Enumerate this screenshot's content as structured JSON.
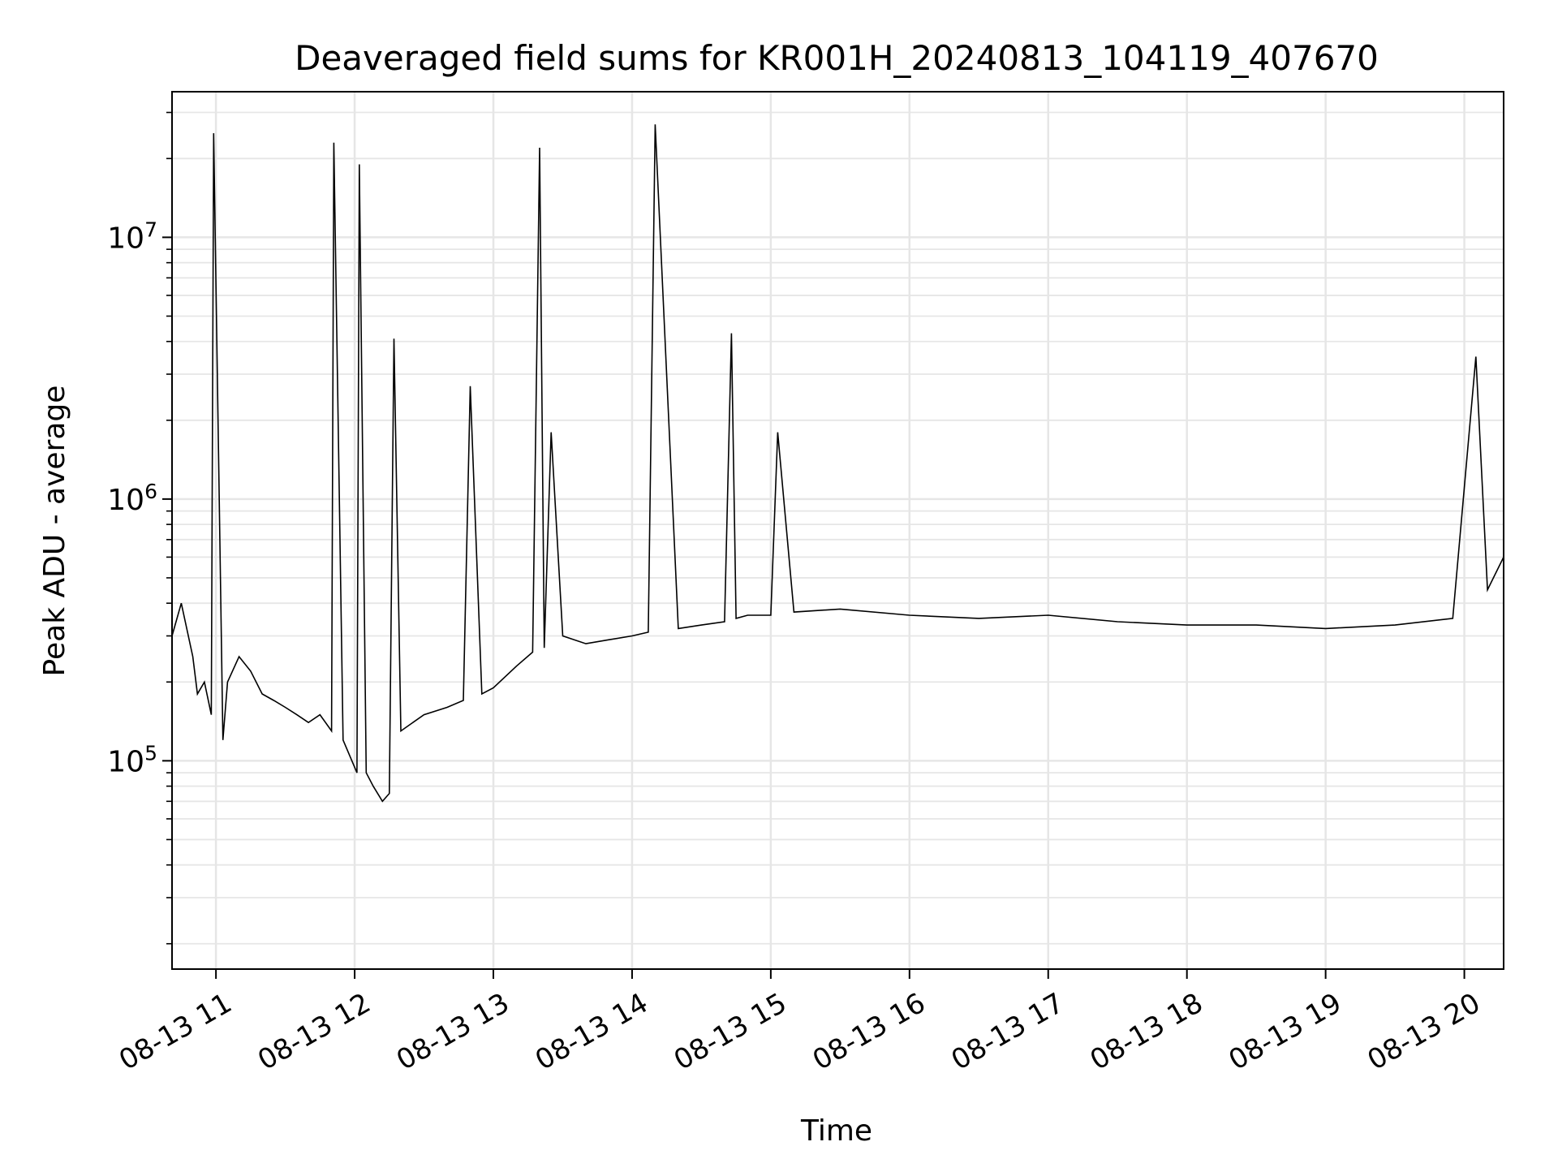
{
  "chart_data": {
    "type": "line",
    "title": "Deaveraged field sums for KR001H_20240813_104119_407670",
    "xlabel": "Time",
    "ylabel": "Peak ADU - average",
    "yscale": "log",
    "grid": true,
    "line_color": "#000000",
    "grid_color": "#e6e6e6",
    "xlim": [
      "2024-08-13T10:41",
      "2024-08-13T20:17"
    ],
    "ylim": [
      16000,
      36000000
    ],
    "x_ticks": [
      {
        "value": "2024-08-13T11:00",
        "label": "08-13 11"
      },
      {
        "value": "2024-08-13T12:00",
        "label": "08-13 12"
      },
      {
        "value": "2024-08-13T13:00",
        "label": "08-13 13"
      },
      {
        "value": "2024-08-13T14:00",
        "label": "08-13 14"
      },
      {
        "value": "2024-08-13T15:00",
        "label": "08-13 15"
      },
      {
        "value": "2024-08-13T16:00",
        "label": "08-13 16"
      },
      {
        "value": "2024-08-13T17:00",
        "label": "08-13 17"
      },
      {
        "value": "2024-08-13T18:00",
        "label": "08-13 18"
      },
      {
        "value": "2024-08-13T19:00",
        "label": "08-13 19"
      },
      {
        "value": "2024-08-13T20:00",
        "label": "08-13 20"
      }
    ],
    "y_ticks": [
      {
        "value": 100000,
        "base": "10",
        "exp": "5"
      },
      {
        "value": 1000000,
        "base": "10",
        "exp": "6"
      },
      {
        "value": 10000000,
        "base": "10",
        "exp": "7"
      }
    ],
    "series": [
      {
        "x": [
          "2024-08-13T10:41",
          "2024-08-13T10:45",
          "2024-08-13T10:50",
          "2024-08-13T10:52",
          "2024-08-13T10:55",
          "2024-08-13T10:58",
          "2024-08-13T10:59",
          "2024-08-13T11:03",
          "2024-08-13T11:05",
          "2024-08-13T11:10",
          "2024-08-13T11:15",
          "2024-08-13T11:20",
          "2024-08-13T11:25",
          "2024-08-13T11:30",
          "2024-08-13T11:35",
          "2024-08-13T11:40",
          "2024-08-13T11:45",
          "2024-08-13T11:50",
          "2024-08-13T11:51",
          "2024-08-13T11:55",
          "2024-08-13T12:01",
          "2024-08-13T12:02",
          "2024-08-13T12:05",
          "2024-08-13T12:08",
          "2024-08-13T12:12",
          "2024-08-13T12:15",
          "2024-08-13T12:17",
          "2024-08-13T12:20",
          "2024-08-13T12:30",
          "2024-08-13T12:40",
          "2024-08-13T12:47",
          "2024-08-13T12:50",
          "2024-08-13T12:55",
          "2024-08-13T13:00",
          "2024-08-13T13:10",
          "2024-08-13T13:17",
          "2024-08-13T13:20",
          "2024-08-13T13:22",
          "2024-08-13T13:25",
          "2024-08-13T13:30",
          "2024-08-13T13:40",
          "2024-08-13T13:50",
          "2024-08-13T14:00",
          "2024-08-13T14:07",
          "2024-08-13T14:10",
          "2024-08-13T14:20",
          "2024-08-13T14:30",
          "2024-08-13T14:40",
          "2024-08-13T14:43",
          "2024-08-13T14:45",
          "2024-08-13T14:50",
          "2024-08-13T15:00",
          "2024-08-13T15:03",
          "2024-08-13T15:10",
          "2024-08-13T15:30",
          "2024-08-13T16:00",
          "2024-08-13T16:30",
          "2024-08-13T17:00",
          "2024-08-13T17:30",
          "2024-08-13T18:00",
          "2024-08-13T18:30",
          "2024-08-13T19:00",
          "2024-08-13T19:30",
          "2024-08-13T19:55",
          "2024-08-13T20:05",
          "2024-08-13T20:10",
          "2024-08-13T20:17"
        ],
        "y": [
          300000,
          400000,
          250000,
          180000,
          200000,
          150000,
          25000000,
          120000,
          200000,
          250000,
          220000,
          180000,
          170000,
          160000,
          150000,
          140000,
          150000,
          130000,
          23000000,
          120000,
          90000,
          19000000,
          90000,
          80000,
          70000,
          75000,
          4100000,
          130000,
          150000,
          160000,
          170000,
          2700000,
          180000,
          190000,
          230000,
          260000,
          22000000,
          270000,
          1800000,
          300000,
          280000,
          290000,
          300000,
          310000,
          27000000,
          320000,
          330000,
          340000,
          4300000,
          350000,
          360000,
          360000,
          1800000,
          370000,
          380000,
          360000,
          350000,
          360000,
          340000,
          330000,
          330000,
          320000,
          330000,
          350000,
          3500000,
          450000,
          600000
        ]
      }
    ]
  }
}
